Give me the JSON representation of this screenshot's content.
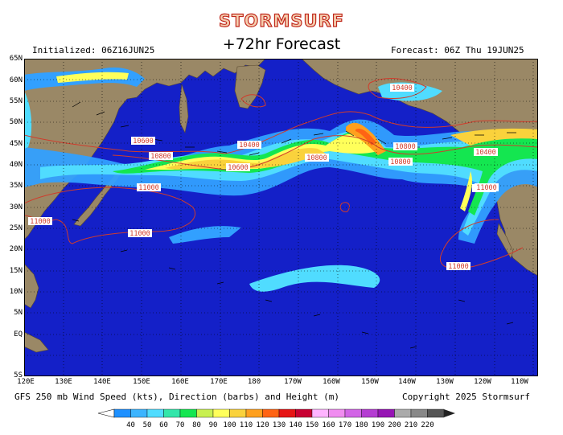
{
  "header": {
    "logo": "STORMSURF",
    "title": "+72hr Forecast",
    "initialized": "Initialized: 06Z16JUN25",
    "forecast": "Forecast: 06Z Thu 19JUN25"
  },
  "axes": {
    "lat_labels": [
      "65N",
      "60N",
      "55N",
      "50N",
      "45N",
      "40N",
      "35N",
      "30N",
      "25N",
      "20N",
      "15N",
      "10N",
      "5N",
      "EQ",
      "5S"
    ],
    "lon_labels": [
      "120E",
      "130E",
      "140E",
      "150E",
      "160E",
      "170E",
      "180",
      "170W",
      "160W",
      "150W",
      "140W",
      "130W",
      "120W",
      "110W"
    ]
  },
  "contours": [
    "10400",
    "10600",
    "10800",
    "11000"
  ],
  "contour_labels": [
    "10600",
    "10800",
    "10400",
    "10600",
    "10800",
    "10400",
    "10800",
    "10800",
    "10400",
    "10600",
    "11000",
    "11000",
    "11000",
    "11000",
    "11000"
  ],
  "footer": {
    "caption": "GFS 250 mb Wind Speed (kts), Direction (barbs) and Height (m)",
    "copyright": "Copyright 2025 Stormsurf"
  },
  "color_scale": {
    "values": [
      "40",
      "50",
      "60",
      "70",
      "80",
      "90",
      "100",
      "110",
      "120",
      "130",
      "140",
      "150",
      "160",
      "170",
      "180",
      "190",
      "200",
      "210",
      "220"
    ],
    "colors": [
      "#1e90ff",
      "#3cb4ff",
      "#50dcff",
      "#32e6aa",
      "#14e650",
      "#c8f050",
      "#ffff5a",
      "#fad23c",
      "#ffa01e",
      "#ff6414",
      "#e61414",
      "#c80032",
      "#ffb4ff",
      "#f08cf0",
      "#d264e6",
      "#b43cd2",
      "#9614b4",
      "#aaaaaa",
      "#888888",
      "#555555"
    ]
  },
  "colors": {
    "ocean": "#1420c8",
    "land": "#9a8866",
    "contour": "#d03c2c",
    "logo_stroke": "#c0281c"
  }
}
